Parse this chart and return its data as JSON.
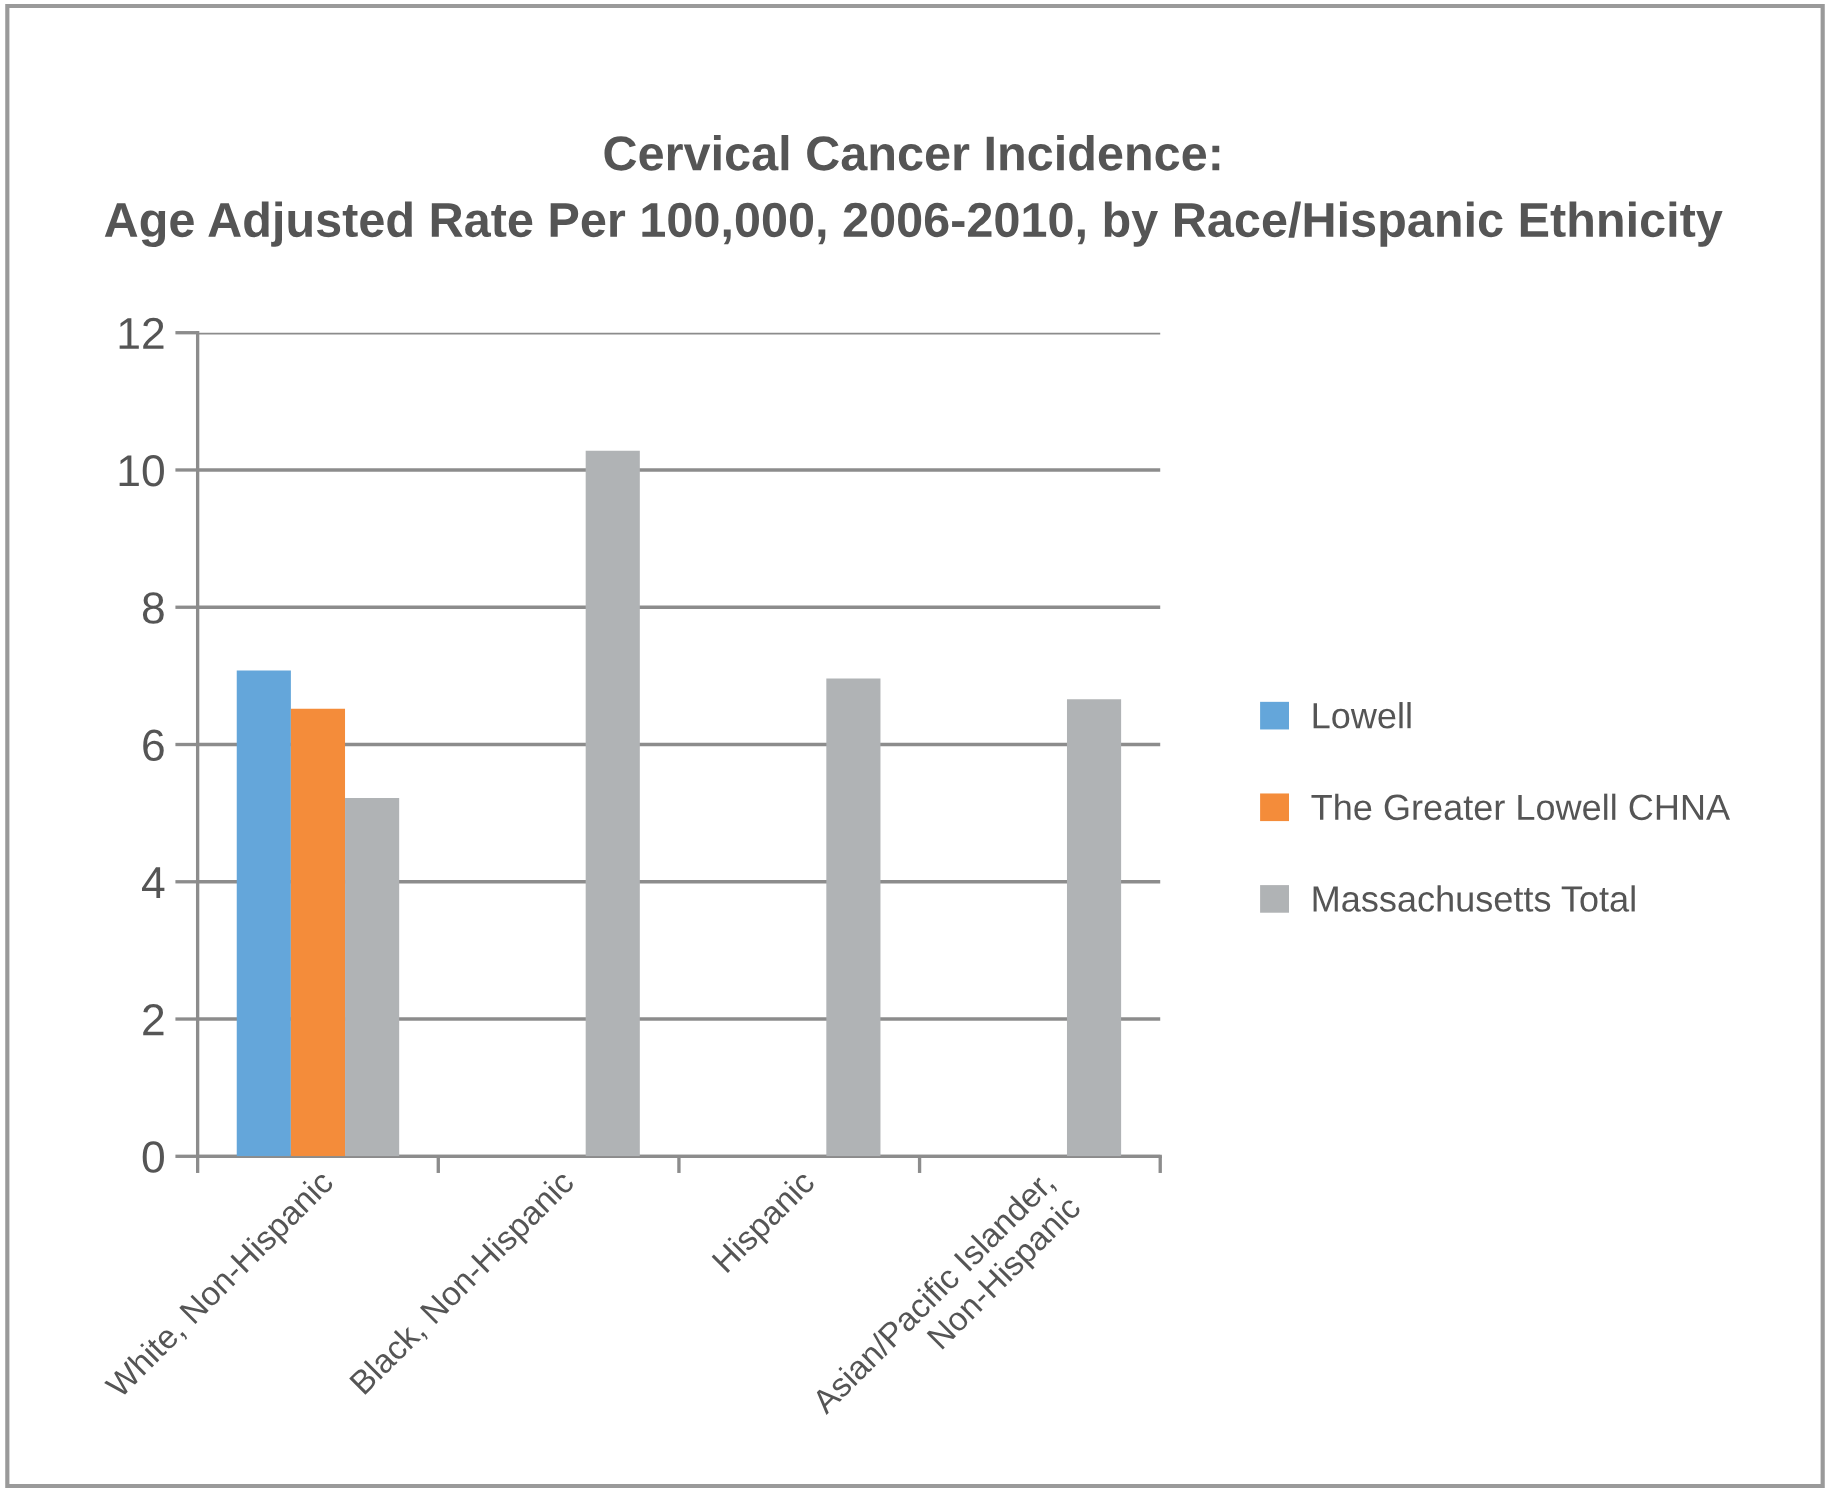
{
  "chart_data": {
    "type": "bar",
    "title": "Cervical Cancer Incidence:\nAge Adjusted Rate Per 100,000, 2006-2010, by Race/Hispanic Ethnicity",
    "categories": [
      "White, Non-Hispanic",
      "Black, Non-Hispanic",
      "Hispanic",
      "Asian/Pacific Islander,\nNon-Hispanic"
    ],
    "series": [
      {
        "name": "Lowell",
        "color": "#64a6da",
        "values": [
          7.08,
          null,
          null,
          null
        ]
      },
      {
        "name": "The Greater Lowell CHNA",
        "color": "#f48c3a",
        "values": [
          6.52,
          null,
          null,
          null
        ]
      },
      {
        "name": "Massachusetts Total",
        "color": "#b0b3b5",
        "values": [
          5.22,
          10.28,
          6.96,
          6.66
        ]
      }
    ],
    "ylim": [
      0,
      12
    ],
    "yticks": [
      0,
      2,
      4,
      6,
      8,
      10,
      12
    ],
    "grid": "y",
    "legend": "right"
  }
}
